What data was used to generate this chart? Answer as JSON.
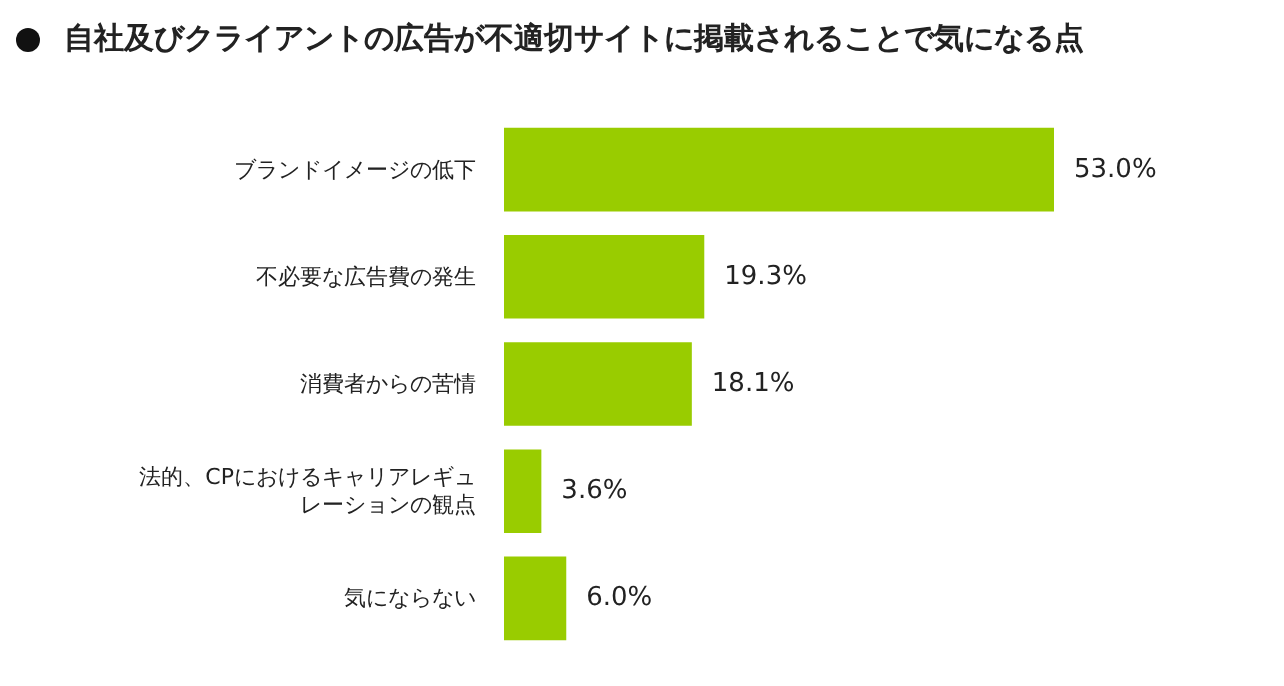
{
  "chart_data": {
    "type": "bar",
    "orientation": "horizontal",
    "title": "自社及びクライアントの広告が不適切サイトに掲載されることで気になる点",
    "categories": [
      "ブランドイメージの低下",
      "不必要な広告費の発生",
      "消費者からの苦情",
      "法的、CPにおけるキャリアレギュレーションの観点",
      "気にならない"
    ],
    "values": [
      53.0,
      19.3,
      18.1,
      3.6,
      6.0
    ],
    "value_labels": [
      "53.0%",
      "19.3%",
      "18.1%",
      "3.6%",
      "6.0%"
    ],
    "color": "#99cc00"
  }
}
